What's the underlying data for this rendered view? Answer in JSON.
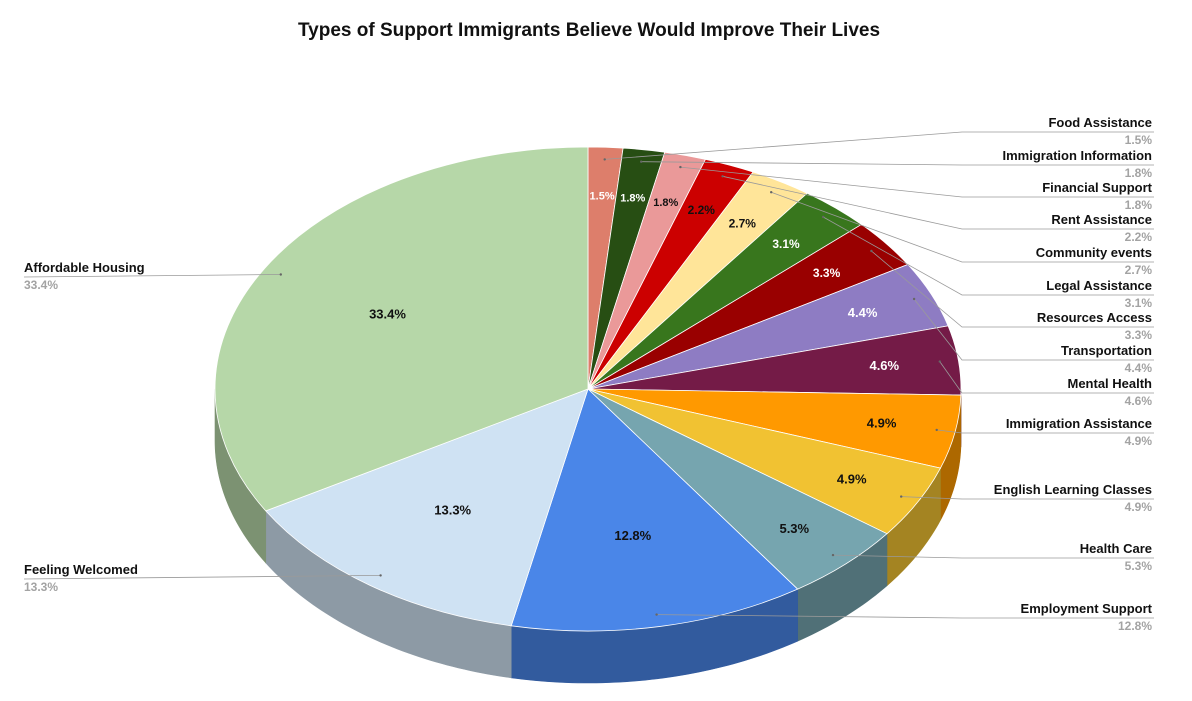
{
  "chart_data": {
    "type": "pie",
    "title": "Types of Support Immigrants Believe Would Improve Their Lives",
    "three_d": true,
    "slices": [
      {
        "label": "Food Assistance",
        "value": 1.5,
        "display": "1.5%",
        "color": "#dd7e6b",
        "text_color": "#ffffff"
      },
      {
        "label": "Immigration Information",
        "value": 1.8,
        "display": "1.8%",
        "color": "#274e13",
        "text_color": "#ffffff"
      },
      {
        "label": "Financial Support",
        "value": 1.8,
        "display": "1.8%",
        "color": "#ea9999",
        "text_color": "#111111"
      },
      {
        "label": "Rent Assistance",
        "value": 2.2,
        "display": "2.2%",
        "color": "#cc0000",
        "text_color": "#111111"
      },
      {
        "label": "Community events",
        "value": 2.7,
        "display": "2.7%",
        "color": "#ffe599",
        "text_color": "#111111"
      },
      {
        "label": "Legal Assistance",
        "value": 3.1,
        "display": "3.1%",
        "color": "#38761d",
        "text_color": "#ffffff"
      },
      {
        "label": "Resources Access",
        "value": 3.3,
        "display": "3.3%",
        "color": "#990000",
        "text_color": "#ffffff"
      },
      {
        "label": "Transportation",
        "value": 4.4,
        "display": "4.4%",
        "color": "#8e7cc3",
        "text_color": "#ffffff"
      },
      {
        "label": "Mental Health",
        "value": 4.6,
        "display": "4.6%",
        "color": "#741b47",
        "text_color": "#ffffff"
      },
      {
        "label": "Immigration Assistance",
        "value": 4.9,
        "display": "4.9%",
        "color": "#ff9900",
        "text_color": "#111111"
      },
      {
        "label": "English Learning Classes",
        "value": 4.9,
        "display": "4.9%",
        "color": "#f1c232",
        "text_color": "#111111"
      },
      {
        "label": "Health Care",
        "value": 5.3,
        "display": "5.3%",
        "color": "#76a5af",
        "text_color": "#111111"
      },
      {
        "label": "Employment Support",
        "value": 12.8,
        "display": "12.8%",
        "color": "#4a86e8",
        "text_color": "#111111"
      },
      {
        "label": "Feeling Welcomed",
        "value": 13.3,
        "display": "13.3%",
        "color": "#cfe2f3",
        "text_color": "#111111"
      },
      {
        "label": "Affordable Housing",
        "value": 33.4,
        "display": "33.4%",
        "color": "#b6d7a8",
        "text_color": "#111111"
      }
    ]
  }
}
